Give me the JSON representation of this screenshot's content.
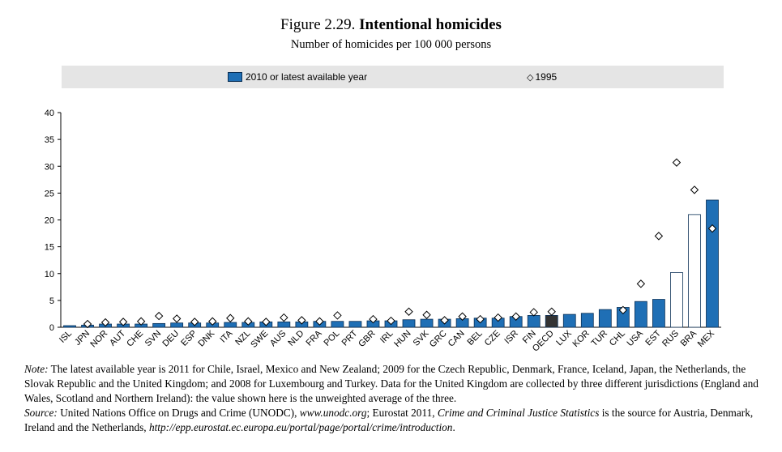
{
  "header": {
    "figure_label": "Figure 2.29.",
    "title": "Intentional homicides",
    "subtitle": "Number of homicides per 100 000 persons"
  },
  "legend": {
    "bar_label": "2010 or latest available year",
    "marker_label": "1995"
  },
  "colors": {
    "bar": "#1f6fb5",
    "bar_stroke": "#0a2f55",
    "oecd_bar": "#333333",
    "hollow_bar": "#ffffff",
    "legend_bg": "#e5e5e5"
  },
  "chart_data": {
    "type": "bar",
    "ylim": [
      0,
      40
    ],
    "yticks": [
      0,
      5,
      10,
      15,
      20,
      25,
      30,
      35,
      40
    ],
    "grid": false,
    "legend_position": "top",
    "categories": [
      "ISL",
      "JPN",
      "NOR",
      "AUT",
      "CHE",
      "SVN",
      "DEU",
      "ESP",
      "DNK",
      "ITA",
      "NZL",
      "SWE",
      "AUS",
      "NLD",
      "FRA",
      "POL",
      "PRT",
      "GBR",
      "IRL",
      "HUN",
      "SVK",
      "GRC",
      "CAN",
      "BEL",
      "CZE",
      "ISR",
      "FIN",
      "OECD",
      "LUX",
      "KOR",
      "TUR",
      "CHL",
      "USA",
      "EST",
      "RUS",
      "BRA",
      "MEX"
    ],
    "series": [
      {
        "name": "2010 or latest available year",
        "style": "bar",
        "values": [
          0.3,
          0.4,
          0.6,
          0.6,
          0.6,
          0.7,
          0.8,
          0.8,
          0.8,
          0.9,
          0.9,
          1.0,
          1.0,
          1.0,
          1.1,
          1.1,
          1.1,
          1.2,
          1.2,
          1.4,
          1.5,
          1.5,
          1.6,
          1.7,
          1.7,
          2.0,
          2.2,
          2.2,
          2.4,
          2.6,
          3.3,
          3.7,
          4.8,
          5.2,
          10.2,
          21.0,
          23.7
        ]
      },
      {
        "name": "1995",
        "style": "diamond",
        "values": [
          null,
          0.6,
          0.9,
          1.0,
          1.1,
          2.1,
          1.6,
          1.0,
          1.1,
          1.7,
          1.1,
          1.0,
          1.8,
          1.3,
          1.1,
          2.2,
          null,
          1.5,
          1.2,
          2.9,
          2.3,
          1.3,
          2.0,
          1.5,
          1.8,
          2.0,
          2.8,
          2.9,
          null,
          null,
          null,
          3.2,
          8.1,
          17.0,
          30.7,
          25.6,
          18.4
        ]
      }
    ],
    "hollow_categories": [
      "RUS",
      "BRA"
    ],
    "highlight_categories": [
      "OECD"
    ]
  },
  "notes": {
    "note_label": "Note:",
    "note_text": "The latest available year is 2011 for Chile, Israel, Mexico and New Zealand; 2009 for the Czech Republic, Denmark, France, Iceland, Japan, the Netherlands, the Slovak Republic and the United Kingdom; and 2008 for Luxembourg and Turkey. Data for the United Kingdom are collected by three different jurisdictions (England and Wales, Scotland and Northern Ireland): the value shown here is the unweighted average of the three.",
    "source_label": "Source:",
    "source_text_1": "United Nations Office on Drugs and Crime (UNODC),",
    "source_url_1": "www.unodc.org",
    "source_text_2": "; Eurostat 2011,",
    "source_pub": "Crime and Criminal Justice Statistics",
    "source_text_3": "is the source for Austria, Denmark, Ireland and the Netherlands,",
    "source_url_2": "http://epp.eurostat.ec.europa.eu/portal/page/portal/crime/introduction",
    "source_end": "."
  }
}
